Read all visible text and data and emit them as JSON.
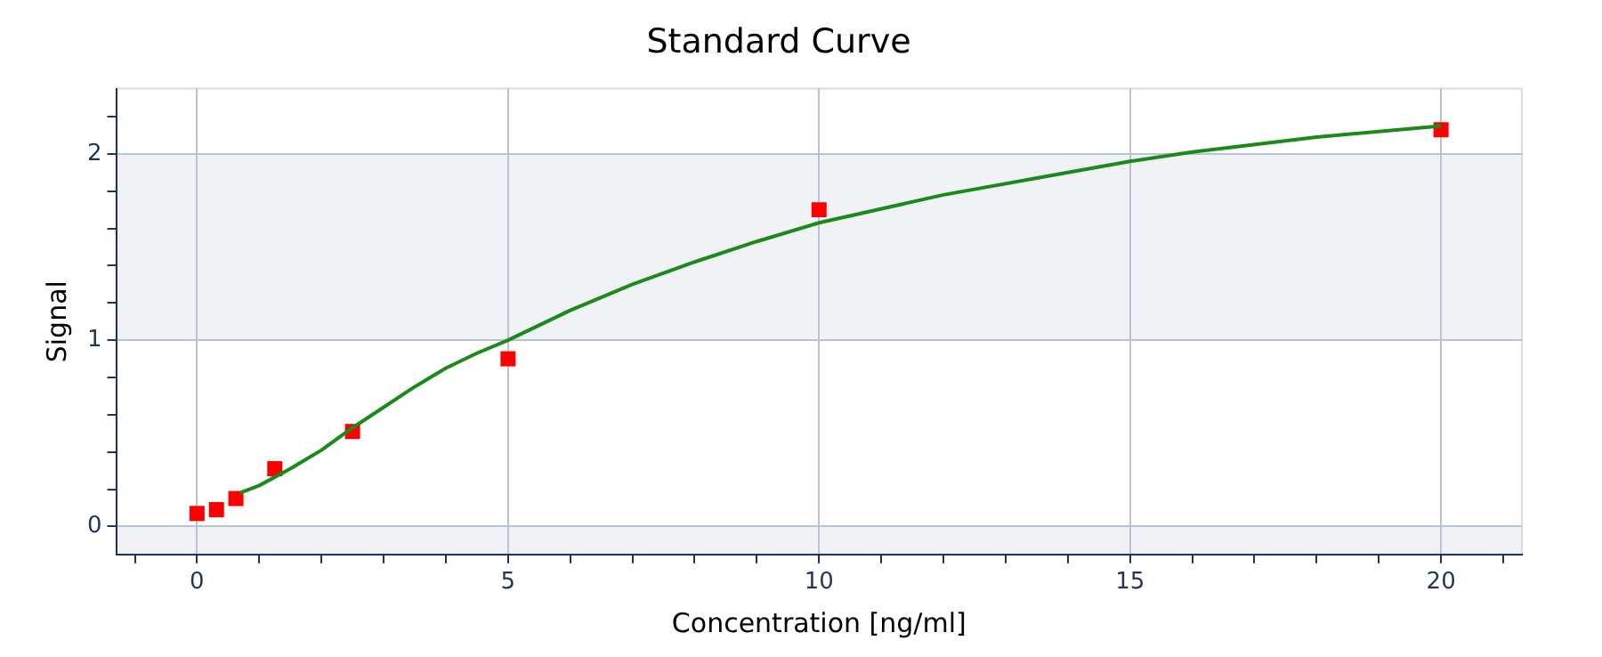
{
  "chart_data": {
    "type": "scatter",
    "title": "Standard Curve",
    "xlabel": "Concentration [ng/ml]",
    "ylabel": "Signal",
    "xlim": [
      -1.3,
      21.3
    ],
    "ylim": [
      -0.15,
      2.35
    ],
    "xticks": [
      {
        "value": -1,
        "label": null
      },
      0,
      {
        "value": 1,
        "label": null
      },
      {
        "value": 2,
        "label": null
      },
      {
        "value": 3,
        "label": null
      },
      {
        "value": 4,
        "label": null
      },
      5,
      {
        "value": 6,
        "label": null
      },
      {
        "value": 7,
        "label": null
      },
      {
        "value": 8,
        "label": null
      },
      {
        "value": 9,
        "label": null
      },
      10,
      {
        "value": 11,
        "label": null
      },
      {
        "value": 12,
        "label": null
      },
      {
        "value": 13,
        "label": null
      },
      {
        "value": 14,
        "label": null
      },
      15,
      {
        "value": 16,
        "label": null
      },
      {
        "value": 17,
        "label": null
      },
      {
        "value": 18,
        "label": null
      },
      {
        "value": 19,
        "label": null
      },
      20,
      {
        "value": 21,
        "label": null
      }
    ],
    "yticks": [
      0,
      {
        "value": 0.2,
        "label": null
      },
      {
        "value": 0.4,
        "label": null
      },
      {
        "value": 0.6,
        "label": null
      },
      {
        "value": 0.8,
        "label": null
      },
      1,
      {
        "value": 1.2,
        "label": null
      },
      {
        "value": 1.4,
        "label": null
      },
      {
        "value": 1.6,
        "label": null
      },
      {
        "value": 1.8,
        "label": null
      },
      2,
      {
        "value": 2.2,
        "label": null
      }
    ],
    "grid": true,
    "legend": false,
    "bands": [
      {
        "axis": "y",
        "from": -0.15,
        "to": 0,
        "color": "#f0f2f6"
      },
      {
        "axis": "y",
        "from": 1,
        "to": 2,
        "color": "#f0f2f6"
      }
    ],
    "series": [
      {
        "type": "line",
        "color": "#1a8a1a",
        "marker": "none",
        "line_style": "solid",
        "x": [
          0.69,
          1,
          1.5,
          2,
          2.5,
          3,
          3.5,
          4,
          4.5,
          5,
          6,
          7,
          8,
          9,
          10,
          12,
          14,
          15,
          16,
          18,
          20
        ],
        "values": [
          0.18,
          0.22,
          0.31,
          0.41,
          0.53,
          0.64,
          0.75,
          0.85,
          0.93,
          1.0,
          1.16,
          1.3,
          1.42,
          1.53,
          1.63,
          1.78,
          1.9,
          1.96,
          2.01,
          2.09,
          2.15
        ]
      },
      {
        "color": "#ff0000",
        "marker": "square",
        "x": [
          0,
          0.3125,
          0.625,
          1.25,
          2.5,
          5,
          10,
          20
        ],
        "values": [
          0.07,
          0.09,
          0.15,
          0.31,
          0.51,
          0.9,
          1.7,
          2.13
        ]
      }
    ]
  }
}
